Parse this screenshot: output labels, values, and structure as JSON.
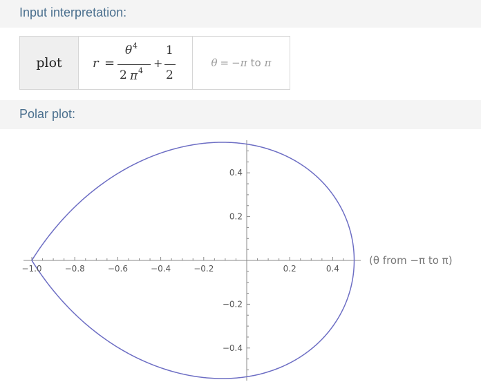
{
  "input_section": {
    "title": "Input interpretation:"
  },
  "interpretation": {
    "command": "plot",
    "formula": {
      "lhs": "r",
      "eq": "=",
      "num1": "θ",
      "num1_exp": "4",
      "den1_coef": "2",
      "den1_pi": "π",
      "den1_exp": "4",
      "plus": "+",
      "num2": "1",
      "den2": "2"
    },
    "range": {
      "var": "θ",
      "eq": "=",
      "from": "−π",
      "to_word": "to",
      "to": "π"
    }
  },
  "polar_section": {
    "title": "Polar plot:"
  },
  "chart_data": {
    "type": "line",
    "title": "",
    "equation": "r = θ^4/(2π^4) + 1/2",
    "parameter_range": [
      -3.14159,
      3.14159
    ],
    "x_ticks": [
      "−1.0",
      "−0.8",
      "−0.6",
      "−0.4",
      "−0.2",
      "0.2",
      "0.4"
    ],
    "y_ticks": [
      "0.4",
      "0.2",
      "−0.2",
      "−0.4"
    ],
    "xlim": [
      -1.0,
      0.5
    ],
    "ylim": [
      -0.53,
      0.53
    ],
    "annotation": "(θ from −π to π)",
    "grid": false,
    "series_color": "#6d6ec4"
  }
}
